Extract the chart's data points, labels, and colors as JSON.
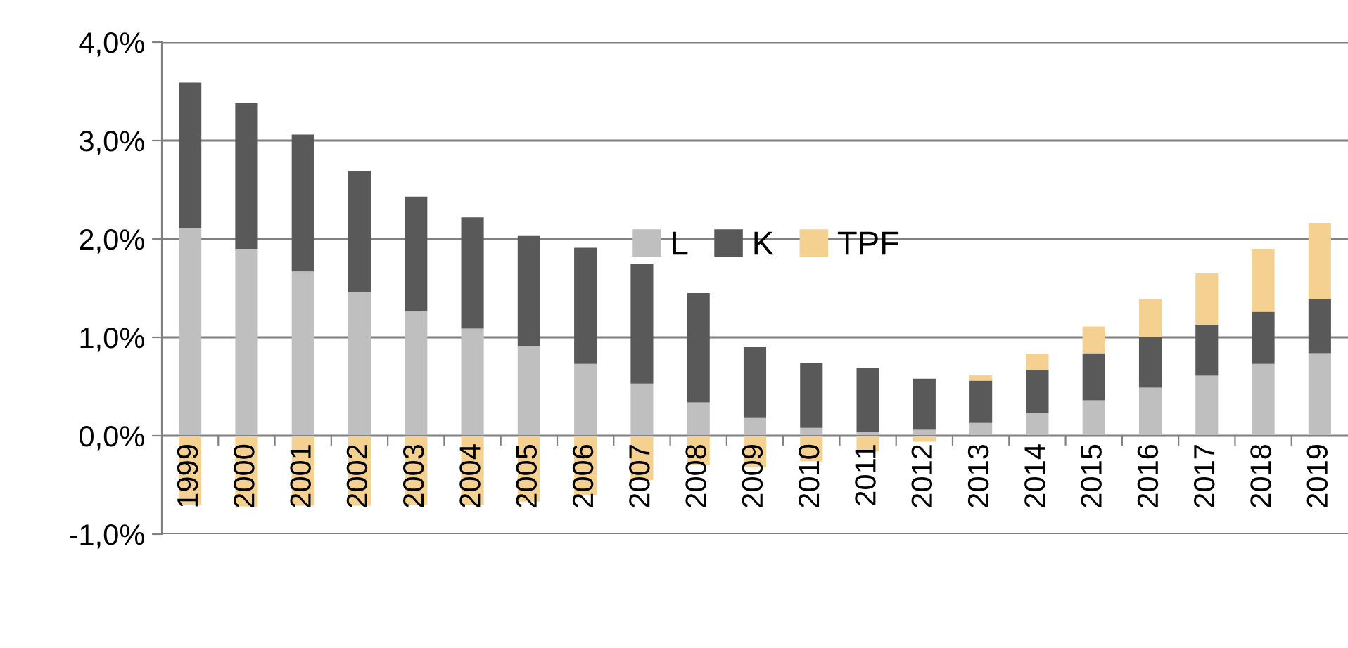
{
  "chart_data": {
    "type": "bar",
    "stacked": true,
    "categories": [
      "1999",
      "2000",
      "2001",
      "2002",
      "2003",
      "2004",
      "2005",
      "2006",
      "2007",
      "2008",
      "2009",
      "2010",
      "2011",
      "2012",
      "2013",
      "2014",
      "2015",
      "2016",
      "2017",
      "2018",
      "2019"
    ],
    "series": [
      {
        "name": "L",
        "color": "#bfbfbf",
        "values": [
          2.11,
          1.9,
          1.67,
          1.46,
          1.27,
          1.09,
          0.91,
          0.73,
          0.53,
          0.34,
          0.18,
          0.08,
          0.04,
          0.06,
          0.13,
          0.23,
          0.36,
          0.49,
          0.61,
          0.73,
          0.84
        ]
      },
      {
        "name": "K",
        "color": "#595959",
        "values": [
          1.48,
          1.48,
          1.39,
          1.23,
          1.16,
          1.13,
          1.12,
          1.18,
          1.22,
          1.11,
          0.72,
          0.66,
          0.65,
          0.52,
          0.43,
          0.44,
          0.48,
          0.51,
          0.52,
          0.53,
          0.55
        ]
      },
      {
        "name": "TPF",
        "color": "#f5d191",
        "values": [
          -0.7,
          -0.72,
          -0.71,
          -0.71,
          -0.7,
          -0.7,
          -0.67,
          -0.6,
          -0.45,
          -0.3,
          -0.32,
          -0.26,
          -0.16,
          -0.06,
          0.06,
          0.16,
          0.27,
          0.39,
          0.52,
          0.64,
          0.77
        ]
      }
    ],
    "ylim": [
      -1,
      4
    ],
    "yticks": [
      {
        "value": -1,
        "label": "-1,0%"
      },
      {
        "value": 0,
        "label": "0,0%"
      },
      {
        "value": 1,
        "label": "1,0%"
      },
      {
        "value": 2,
        "label": "2,0%"
      },
      {
        "value": 3,
        "label": "3,0%"
      },
      {
        "value": 4,
        "label": "4,0%"
      }
    ],
    "grid": "y",
    "legend": "top"
  }
}
